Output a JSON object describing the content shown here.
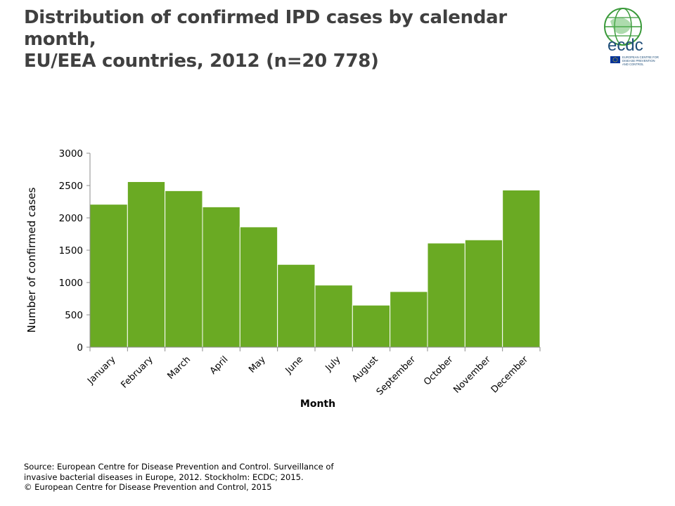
{
  "title_line1": "Distribution of confirmed IPD cases by calendar month,",
  "title_line2": "EU/EEA countries, 2012 (n=20 778)",
  "logo": {
    "wordmark": "ecdc",
    "subtitle_line1": "EUROPEAN CENTRE FOR",
    "subtitle_line2": "DISEASE PREVENTION",
    "subtitle_line3": "AND CONTROL",
    "colors": {
      "globe": "#3a9a3a",
      "wordmark": "#1f4e79",
      "flag": "#003399"
    }
  },
  "chart_data": {
    "type": "bar",
    "title": "",
    "xlabel": "Month",
    "ylabel": "Number of confirmed cases",
    "categories": [
      "January",
      "February",
      "March",
      "April",
      "May",
      "June",
      "July",
      "August",
      "September",
      "October",
      "November",
      "December"
    ],
    "values": [
      2210,
      2560,
      2420,
      2170,
      1860,
      1280,
      960,
      650,
      860,
      1610,
      1660,
      2430
    ],
    "ylim": [
      0,
      3000
    ],
    "yticks": [
      0,
      500,
      1000,
      1500,
      2000,
      2500,
      3000
    ],
    "bar_color": "#6aaa23",
    "grid": false,
    "legend": "none"
  },
  "footer": {
    "line1": "Source: European Centre for Disease Prevention and Control. Surveillance of",
    "line2": "invasive bacterial diseases in Europe, 2012. Stockholm: ECDC; 2015.",
    "line3": "© European Centre for Disease Prevention and Control, 2015"
  }
}
